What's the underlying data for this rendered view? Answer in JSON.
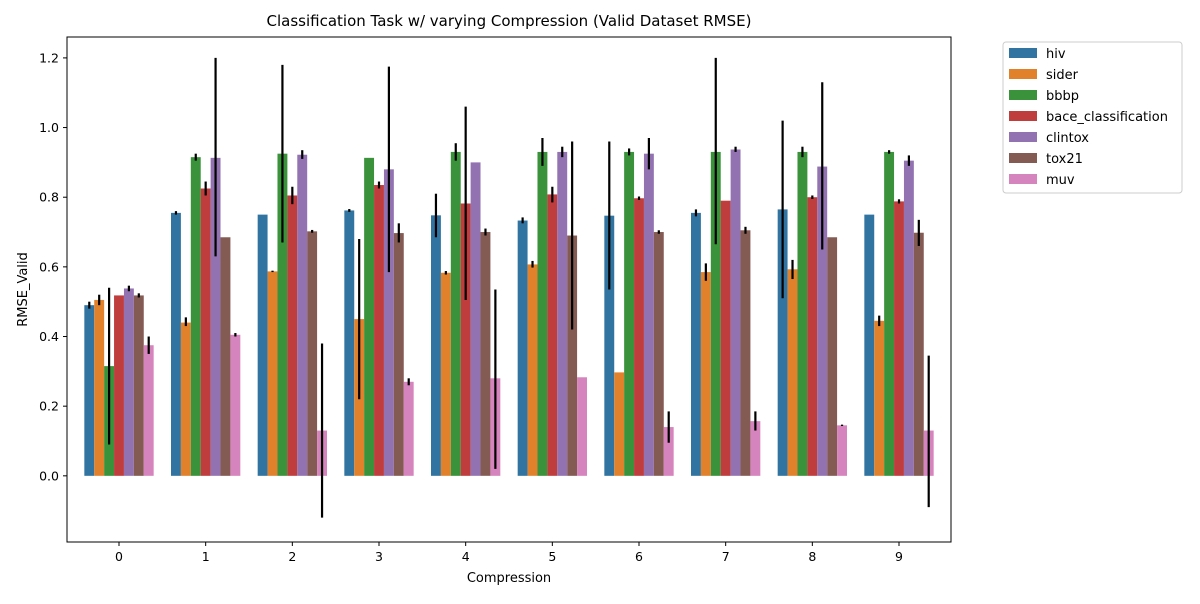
{
  "chart_data": {
    "type": "bar",
    "title": "Classification Task w/ varying Compression (Valid Dataset RMSE)",
    "xlabel": "Compression",
    "ylabel": "RMSE_Valid",
    "categories": [
      "0",
      "1",
      "2",
      "3",
      "4",
      "5",
      "6",
      "7",
      "8",
      "9"
    ],
    "ylim": [
      -0.19,
      1.26
    ],
    "yticks": [
      "0.0",
      "0.2",
      "0.4",
      "0.6",
      "0.8",
      "1.0",
      "1.2"
    ],
    "grid": false,
    "legend_position": "outside top-right",
    "series": [
      {
        "name": "hiv",
        "color": "#3274a1",
        "values": [
          0.49,
          0.755,
          0.75,
          0.762,
          0.748,
          0.733,
          0.747,
          0.755,
          0.765,
          0.75
        ],
        "err_low": [
          0.48,
          0.75,
          0.75,
          0.758,
          0.685,
          0.725,
          0.535,
          0.745,
          0.51,
          0.75
        ],
        "err_high": [
          0.5,
          0.76,
          0.75,
          0.766,
          0.81,
          0.742,
          0.96,
          0.765,
          1.02,
          0.75
        ]
      },
      {
        "name": "sider",
        "color": "#e1812c",
        "values": [
          0.505,
          0.44,
          0.587,
          0.45,
          0.583,
          0.607,
          0.297,
          0.585,
          0.593,
          0.445
        ],
        "err_low": [
          0.49,
          0.43,
          0.585,
          0.22,
          0.578,
          0.598,
          0.297,
          0.56,
          0.565,
          0.43
        ],
        "err_high": [
          0.52,
          0.455,
          0.589,
          0.68,
          0.588,
          0.617,
          0.297,
          0.61,
          0.62,
          0.46
        ]
      },
      {
        "name": "bbbp",
        "color": "#3a923a",
        "values": [
          0.315,
          0.915,
          0.925,
          0.913,
          0.93,
          0.93,
          0.93,
          0.93,
          0.93,
          0.93
        ],
        "err_low": [
          0.09,
          0.905,
          0.67,
          0.913,
          0.905,
          0.89,
          0.92,
          0.665,
          0.915,
          0.925
        ],
        "err_high": [
          0.54,
          0.925,
          1.18,
          0.913,
          0.955,
          0.97,
          0.94,
          1.2,
          0.945,
          0.935
        ]
      },
      {
        "name": "bace_classification",
        "color": "#c03d3e",
        "values": [
          0.518,
          0.825,
          0.805,
          0.835,
          0.782,
          0.808,
          0.797,
          0.79,
          0.8,
          0.788
        ],
        "err_low": [
          0.518,
          0.805,
          0.78,
          0.825,
          0.505,
          0.785,
          0.792,
          0.79,
          0.795,
          0.782
        ],
        "err_high": [
          0.518,
          0.845,
          0.83,
          0.845,
          1.06,
          0.83,
          0.802,
          0.79,
          0.805,
          0.794
        ]
      },
      {
        "name": "clintox",
        "color": "#9372b2",
        "values": [
          0.538,
          0.913,
          0.922,
          0.88,
          0.9,
          0.93,
          0.925,
          0.937,
          0.888,
          0.905
        ],
        "err_low": [
          0.53,
          0.63,
          0.91,
          0.585,
          0.9,
          0.915,
          0.88,
          0.93,
          0.65,
          0.89
        ],
        "err_high": [
          0.546,
          1.2,
          0.935,
          1.175,
          0.9,
          0.945,
          0.97,
          0.945,
          1.13,
          0.92
        ]
      },
      {
        "name": "tox21",
        "color": "#845b53",
        "values": [
          0.518,
          0.685,
          0.702,
          0.697,
          0.7,
          0.69,
          0.7,
          0.705,
          0.685,
          0.698
        ],
        "err_low": [
          0.512,
          0.685,
          0.698,
          0.67,
          0.69,
          0.42,
          0.695,
          0.695,
          0.685,
          0.66
        ],
        "err_high": [
          0.524,
          0.685,
          0.706,
          0.725,
          0.71,
          0.96,
          0.705,
          0.715,
          0.685,
          0.735
        ]
      },
      {
        "name": "muv",
        "color": "#d684bd",
        "values": [
          0.375,
          0.405,
          0.13,
          0.27,
          0.28,
          0.283,
          0.14,
          0.157,
          0.145,
          0.13
        ],
        "err_low": [
          0.35,
          0.4,
          -0.12,
          0.26,
          0.02,
          0.283,
          0.095,
          0.13,
          0.143,
          -0.09
        ],
        "err_high": [
          0.4,
          0.41,
          0.38,
          0.28,
          0.535,
          0.283,
          0.185,
          0.185,
          0.147,
          0.345
        ]
      }
    ]
  }
}
